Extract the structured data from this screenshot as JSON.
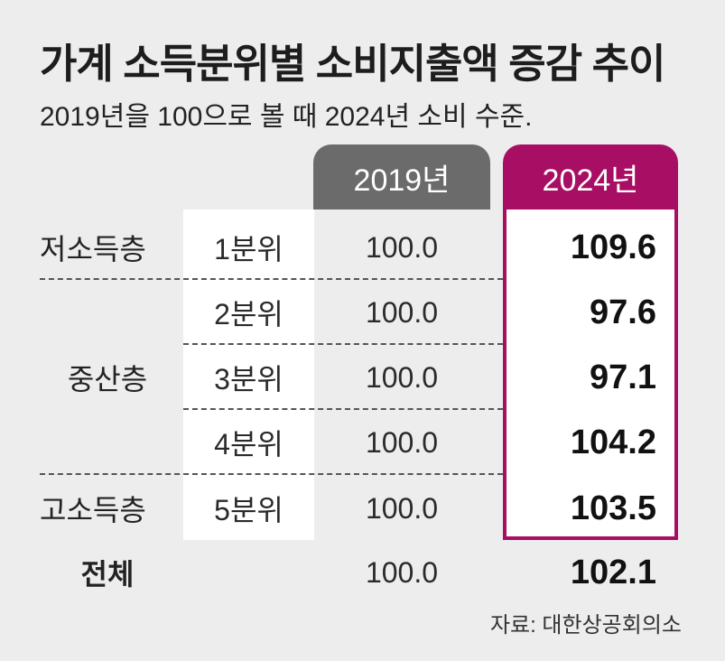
{
  "title": "가계 소득분위별 소비지출액 증감 추이",
  "subtitle": "2019년을 100으로 볼 때 2024년 소비 수준.",
  "source": "자료: 대한상공회의소",
  "colors": {
    "year_2019_header": "#6b6b6b",
    "year_2024_header": "#a80f64",
    "background": "#ededed"
  },
  "chart_data": {
    "type": "table",
    "columns": [
      "2019년",
      "2024년"
    ],
    "groups": [
      "저소득층",
      "중산층",
      "고소득층"
    ],
    "rows": [
      {
        "group": "저소득층",
        "quintile": "1분위",
        "v2019": "100.0",
        "v2024": "109.6"
      },
      {
        "group": "중산층",
        "quintile": "2분위",
        "v2019": "100.0",
        "v2024": "97.6"
      },
      {
        "group": "중산층",
        "quintile": "3분위",
        "v2019": "100.0",
        "v2024": "97.1"
      },
      {
        "group": "중산층",
        "quintile": "4분위",
        "v2019": "100.0",
        "v2024": "104.2"
      },
      {
        "group": "고소득층",
        "quintile": "5분위",
        "v2019": "100.0",
        "v2024": "103.5"
      }
    ],
    "total": {
      "label": "전체",
      "v2019": "100.0",
      "v2024": "102.1"
    }
  }
}
